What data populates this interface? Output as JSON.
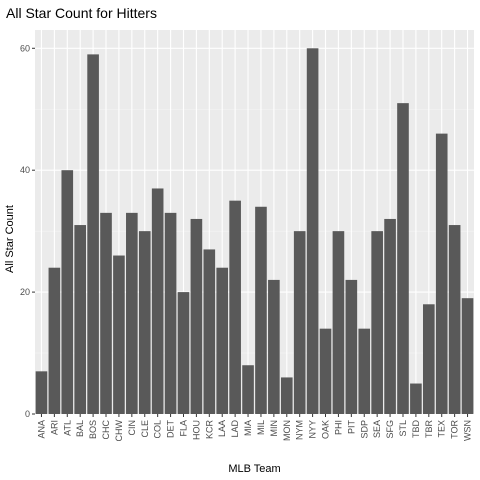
{
  "chart_data": {
    "type": "bar",
    "title": "All Star Count for Hitters",
    "xlabel": "MLB Team",
    "ylabel": "All Star Count",
    "categories": [
      "ANA",
      "ARI",
      "ATL",
      "BAL",
      "BOS",
      "CHC",
      "CHW",
      "CIN",
      "CLE",
      "COL",
      "DET",
      "FLA",
      "HOU",
      "KCR",
      "LAA",
      "LAD",
      "MIA",
      "MIL",
      "MIN",
      "MON",
      "NYM",
      "NYY",
      "OAK",
      "PHI",
      "PIT",
      "SDP",
      "SEA",
      "SFG",
      "STL",
      "TBD",
      "TBR",
      "TEX",
      "TOR",
      "WSN"
    ],
    "values": [
      7,
      24,
      40,
      31,
      59,
      33,
      26,
      33,
      30,
      37,
      33,
      20,
      32,
      27,
      24,
      35,
      8,
      34,
      22,
      6,
      30,
      60,
      14,
      30,
      22,
      14,
      30,
      32,
      51,
      5,
      18,
      46,
      31,
      19
    ],
    "ylim": [
      0,
      63
    ],
    "yticks": [
      0,
      20,
      40,
      60
    ],
    "grid": true,
    "colors": {
      "bar": "#595959",
      "panel": "#ebebeb",
      "grid_major": "#ffffff",
      "grid_minor": "#f5f5f5"
    }
  }
}
